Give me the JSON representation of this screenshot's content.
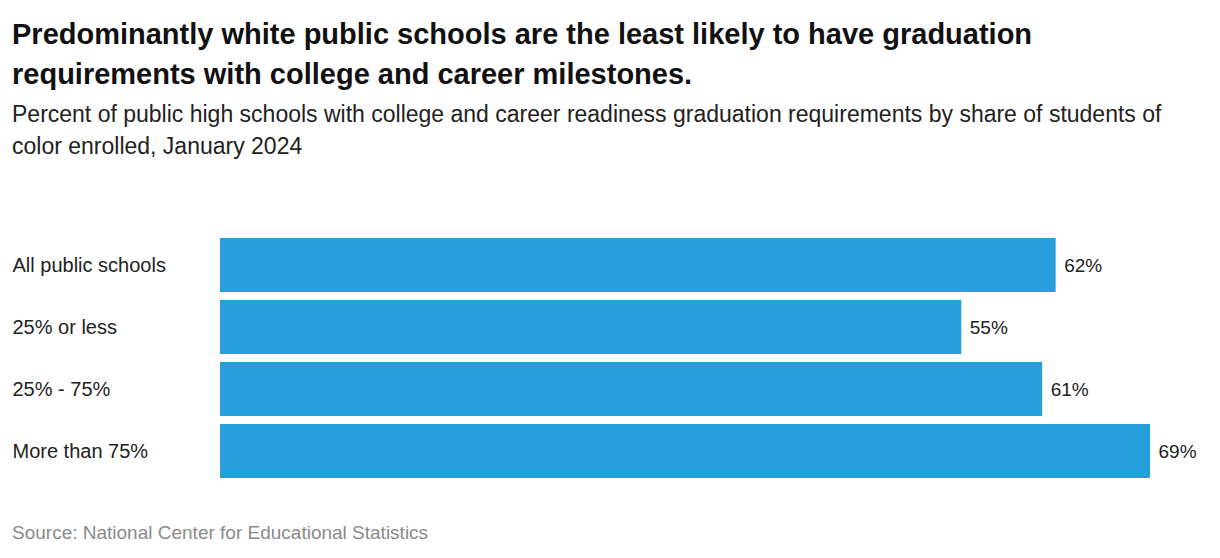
{
  "chart_data": {
    "type": "bar",
    "orientation": "horizontal",
    "title": "Predominantly white public schools are the least likely to have graduation requirements with college and career milestones.",
    "subtitle": "Percent of public high schools with college and career readiness graduation requirements by share of students of color enrolled, January 2024",
    "categories": [
      "All public schools",
      "25% or less",
      "25% - 75%",
      "More than 75%"
    ],
    "values": [
      62,
      55,
      61,
      69
    ],
    "value_labels": [
      "62%",
      "55%",
      "61%",
      "69%"
    ],
    "data_labels": true,
    "color": "#279fdb",
    "tick_labels": "y",
    "grid": false,
    "source": "Source: National Center for Educational Statistics"
  }
}
